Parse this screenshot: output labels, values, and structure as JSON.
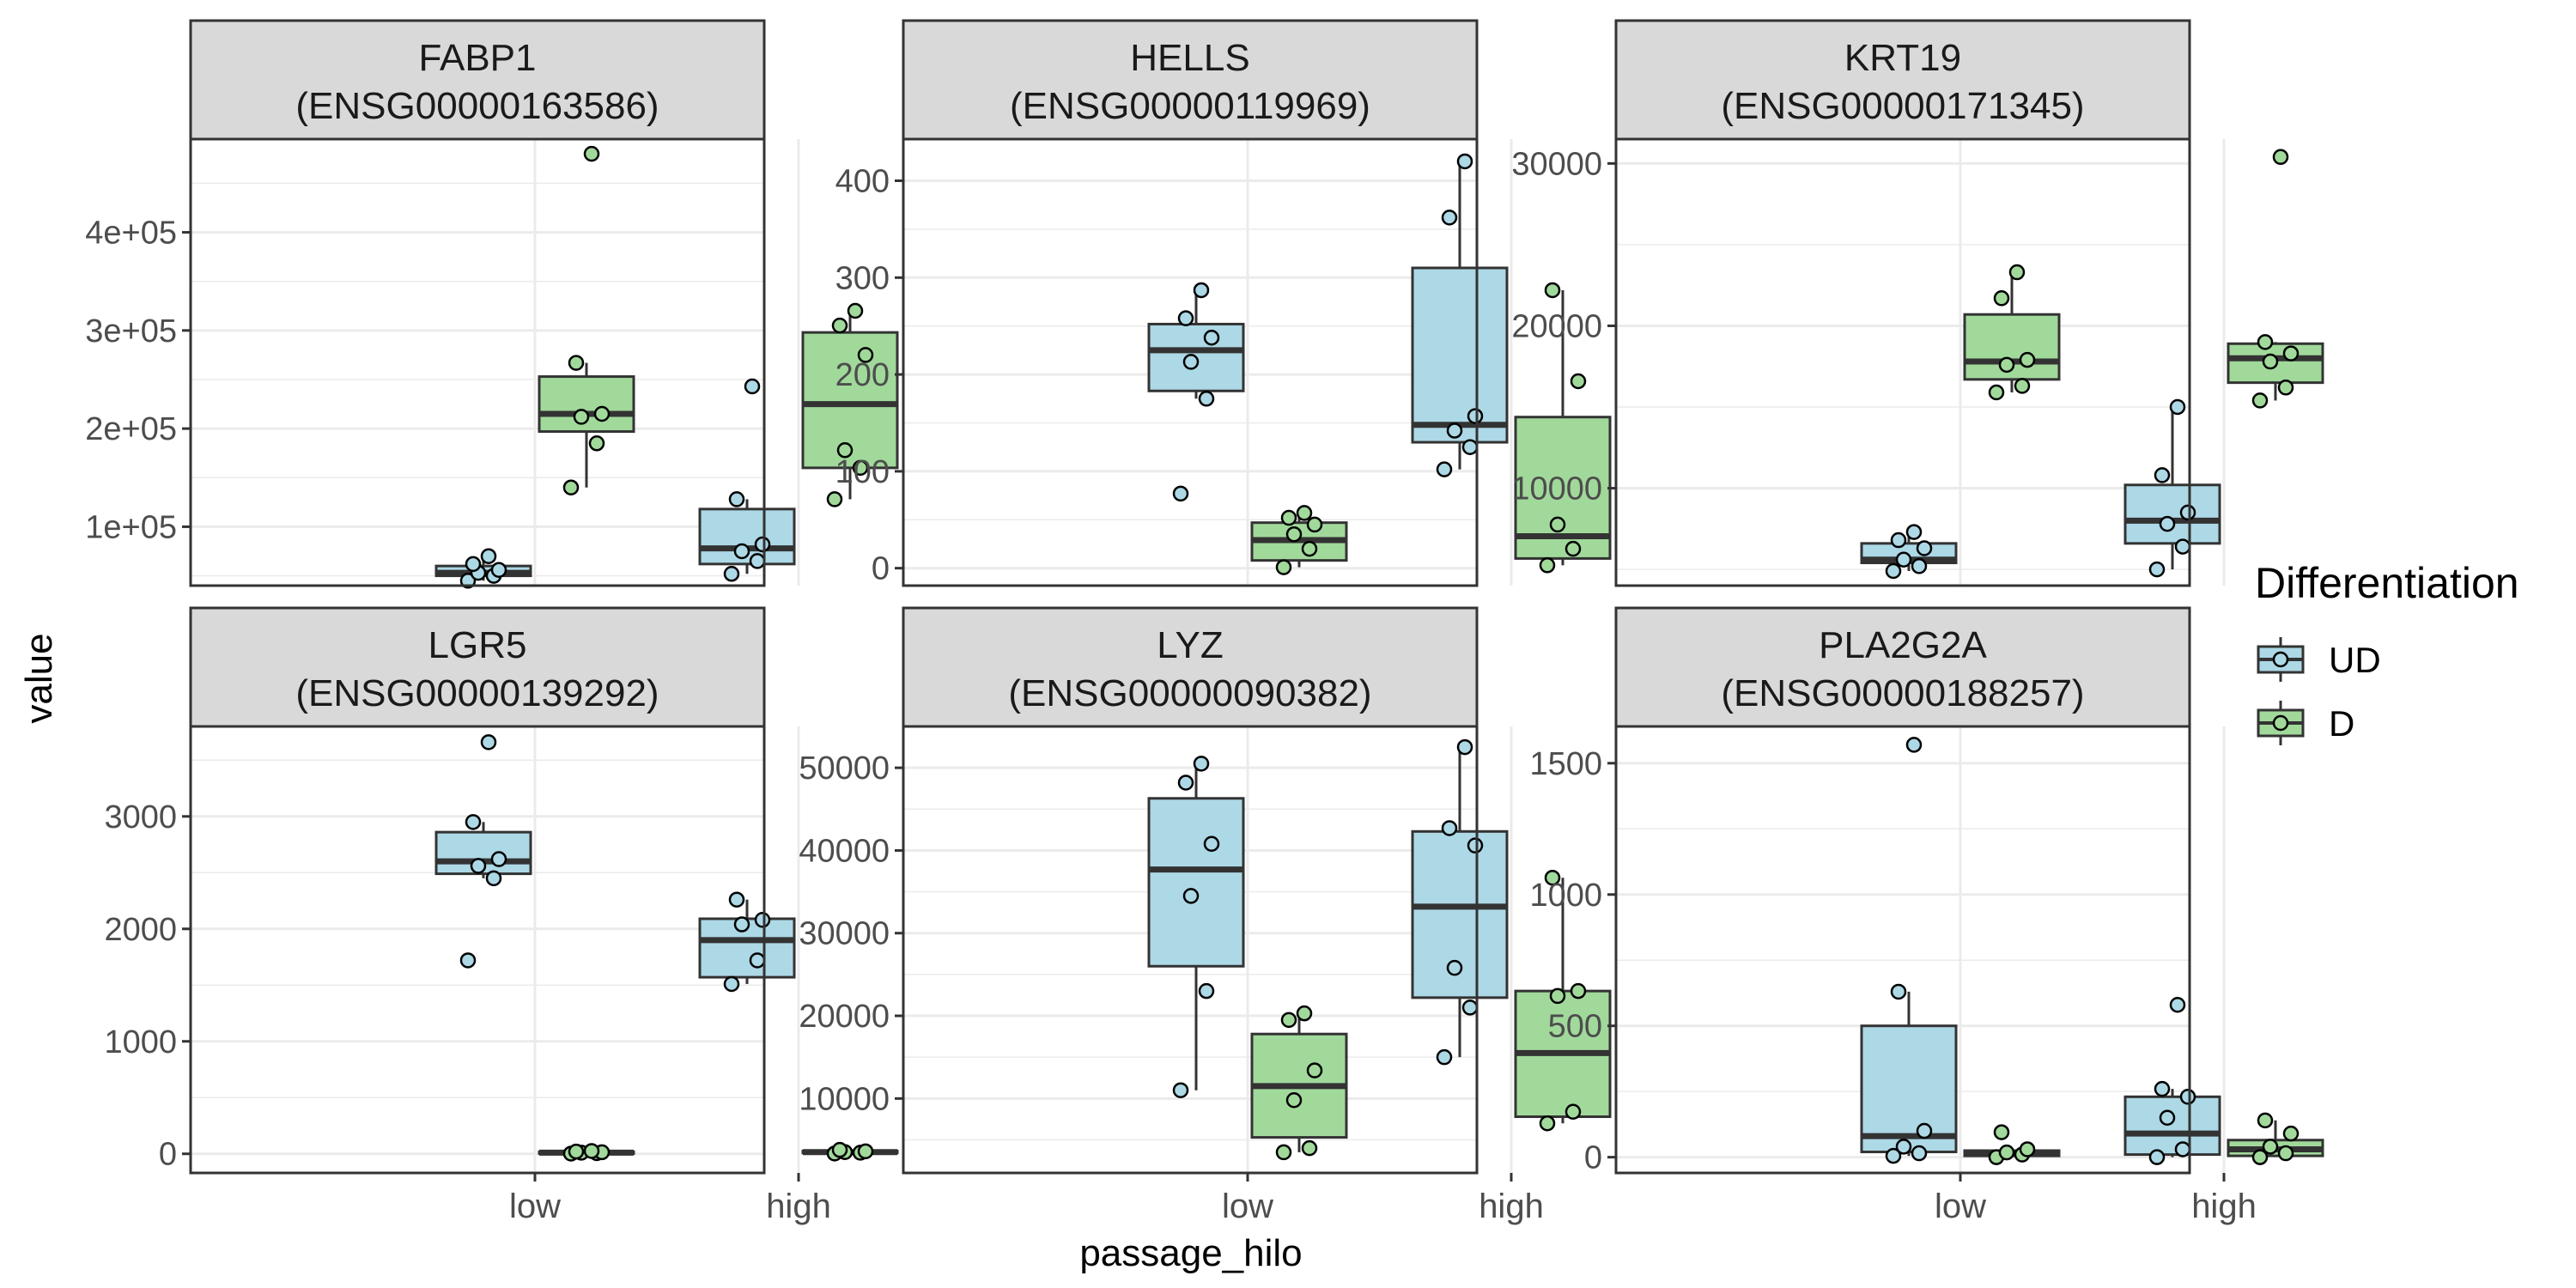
{
  "figure": {
    "ylabel": "value",
    "xlabel": "passage_hilo",
    "legend": {
      "title": "Differentiation",
      "placement": "right",
      "items": [
        {
          "label": "UD",
          "color": "#ADD8E6"
        },
        {
          "label": "D",
          "color": "#A1D99B"
        }
      ]
    },
    "colors": {
      "UD": "#ADD8E6",
      "D": "#A1D99B",
      "strip": "#D9D9D9",
      "grid": "#EBEBEB"
    }
  },
  "chart_data": [
    {
      "type": "box",
      "gene": "FABP1",
      "ensembl": "(ENSG00000163586)",
      "categories": [
        "low",
        "high"
      ],
      "ylim": [
        40000,
        495000
      ],
      "yticks": [
        100000,
        200000,
        300000,
        400000
      ],
      "ytick_labels": [
        "1e+05",
        "2e+05",
        "3e+05",
        "4e+05"
      ],
      "boxes": [
        {
          "passage": "low",
          "group": "UD",
          "q1": 50000,
          "median": 53000,
          "q3": 60000,
          "whisker_low": 45000,
          "whisker_high": 70000,
          "points": [
            45000,
            50000,
            53000,
            56000,
            62000,
            70000
          ]
        },
        {
          "passage": "low",
          "group": "D",
          "q1": 197000,
          "median": 215000,
          "q3": 253000,
          "whisker_low": 140000,
          "whisker_high": 267000,
          "points": [
            140000,
            185000,
            212000,
            215000,
            267000,
            480000
          ]
        },
        {
          "passage": "high",
          "group": "UD",
          "q1": 62000,
          "median": 78000,
          "q3": 118000,
          "whisker_low": 52000,
          "whisker_high": 128000,
          "points": [
            52000,
            65000,
            75000,
            82000,
            128000,
            243000
          ]
        },
        {
          "passage": "high",
          "group": "D",
          "q1": 160000,
          "median": 225000,
          "q3": 298000,
          "whisker_low": 128000,
          "whisker_high": 320000,
          "points": [
            128000,
            160000,
            178000,
            275000,
            305000,
            320000
          ]
        }
      ]
    },
    {
      "type": "box",
      "gene": "HELLS",
      "ensembl": "(ENSG00000119969)",
      "categories": [
        "low",
        "high"
      ],
      "ylim": [
        -18,
        443
      ],
      "yticks": [
        0,
        100,
        200,
        300,
        400
      ],
      "ytick_labels": [
        "0",
        "100",
        "200",
        "300",
        "400"
      ],
      "boxes": [
        {
          "passage": "low",
          "group": "UD",
          "q1": 183,
          "median": 225,
          "q3": 252,
          "whisker_low": 175,
          "whisker_high": 287,
          "points": [
            77,
            175,
            213,
            238,
            258,
            287
          ]
        },
        {
          "passage": "low",
          "group": "D",
          "q1": 8,
          "median": 29,
          "q3": 47,
          "whisker_low": 1,
          "whisker_high": 57,
          "points": [
            1,
            20,
            35,
            45,
            52,
            57
          ]
        },
        {
          "passage": "high",
          "group": "UD",
          "q1": 130,
          "median": 148,
          "q3": 310,
          "whisker_low": 102,
          "whisker_high": 420,
          "points": [
            102,
            125,
            142,
            157,
            362,
            420
          ]
        },
        {
          "passage": "high",
          "group": "D",
          "q1": 10,
          "median": 33,
          "q3": 156,
          "whisker_low": 3,
          "whisker_high": 287,
          "points": [
            3,
            20,
            45,
            193,
            287
          ]
        }
      ]
    },
    {
      "type": "box",
      "gene": "KRT19",
      "ensembl": "(ENSG00000171345)",
      "categories": [
        "low",
        "high"
      ],
      "ylim": [
        4000,
        31500
      ],
      "yticks": [
        10000,
        20000,
        30000
      ],
      "ytick_labels": [
        "10000",
        "20000",
        "30000"
      ],
      "boxes": [
        {
          "passage": "low",
          "group": "UD",
          "q1": 5400,
          "median": 5600,
          "q3": 6600,
          "whisker_low": 4900,
          "whisker_high": 7300,
          "points": [
            4900,
            5200,
            5600,
            6300,
            6800,
            7300
          ]
        },
        {
          "passage": "low",
          "group": "D",
          "q1": 16700,
          "median": 17800,
          "q3": 20700,
          "whisker_low": 15900,
          "whisker_high": 23300,
          "points": [
            15900,
            16300,
            17600,
            17900,
            21700,
            23300
          ]
        },
        {
          "passage": "high",
          "group": "UD",
          "q1": 6600,
          "median": 8000,
          "q3": 10200,
          "whisker_low": 5000,
          "whisker_high": 15000,
          "points": [
            5000,
            6400,
            7800,
            8500,
            10800,
            15000
          ]
        },
        {
          "passage": "high",
          "group": "D",
          "q1": 16500,
          "median": 18000,
          "q3": 18900,
          "whisker_low": 15400,
          "whisker_high": 19000,
          "points": [
            15400,
            16200,
            17800,
            18300,
            19000,
            30400
          ]
        }
      ]
    },
    {
      "type": "box",
      "gene": "LGR5",
      "ensembl": "(ENSG00000139292)",
      "categories": [
        "low",
        "high"
      ],
      "ylim": [
        -170,
        3800
      ],
      "yticks": [
        0,
        1000,
        2000,
        3000
      ],
      "ytick_labels": [
        "0",
        "1000",
        "2000",
        "3000"
      ],
      "boxes": [
        {
          "passage": "low",
          "group": "UD",
          "q1": 2490,
          "median": 2600,
          "q3": 2860,
          "whisker_low": 2450,
          "whisker_high": 2950,
          "points": [
            1720,
            2450,
            2560,
            2620,
            2950,
            3660
          ]
        },
        {
          "passage": "low",
          "group": "D",
          "q1": 5,
          "median": 10,
          "q3": 18,
          "whisker_low": 2,
          "whisker_high": 25,
          "points": [
            2,
            6,
            10,
            14,
            20,
            25
          ]
        },
        {
          "passage": "high",
          "group": "UD",
          "q1": 1570,
          "median": 1900,
          "q3": 2090,
          "whisker_low": 1510,
          "whisker_high": 2260,
          "points": [
            1510,
            1720,
            2040,
            2080,
            2260
          ]
        },
        {
          "passage": "high",
          "group": "D",
          "q1": 8,
          "median": 15,
          "q3": 25,
          "whisker_low": 3,
          "whisker_high": 35,
          "points": [
            3,
            10,
            15,
            22,
            35
          ]
        }
      ]
    },
    {
      "type": "box",
      "gene": "LYZ",
      "ensembl": "(ENSG00000090382)",
      "categories": [
        "low",
        "high"
      ],
      "ylim": [
        1000,
        55000
      ],
      "yticks": [
        10000,
        20000,
        30000,
        40000,
        50000
      ],
      "ytick_labels": [
        "10000",
        "20000",
        "30000",
        "40000",
        "50000"
      ],
      "boxes": [
        {
          "passage": "low",
          "group": "UD",
          "q1": 26000,
          "median": 37700,
          "q3": 46300,
          "whisker_low": 11000,
          "whisker_high": 50500,
          "points": [
            11000,
            23000,
            34500,
            40800,
            48200,
            50500
          ]
        },
        {
          "passage": "low",
          "group": "D",
          "q1": 5300,
          "median": 11500,
          "q3": 17800,
          "whisker_low": 3500,
          "whisker_high": 20300,
          "points": [
            3500,
            4000,
            9800,
            13400,
            19500,
            20300
          ]
        },
        {
          "passage": "high",
          "group": "UD",
          "q1": 22200,
          "median": 33200,
          "q3": 42300,
          "whisker_low": 15000,
          "whisker_high": 52500,
          "points": [
            15000,
            21000,
            25800,
            40600,
            42700,
            52500
          ]
        },
        {
          "passage": "high",
          "group": "D",
          "q1": 7800,
          "median": 15500,
          "q3": 23000,
          "whisker_low": 7000,
          "whisker_high": 36700,
          "points": [
            7000,
            8400,
            22400,
            23000,
            36700
          ]
        }
      ]
    },
    {
      "type": "box",
      "gene": "PLA2G2A",
      "ensembl": "(ENSG00000188257)",
      "categories": [
        "low",
        "high"
      ],
      "ylim": [
        -60,
        1640
      ],
      "yticks": [
        0,
        500,
        1000,
        1500
      ],
      "ytick_labels": [
        "0",
        "500",
        "1000",
        "1500"
      ],
      "boxes": [
        {
          "passage": "low",
          "group": "UD",
          "q1": 20,
          "median": 80,
          "q3": 500,
          "whisker_low": 5,
          "whisker_high": 630,
          "points": [
            5,
            15,
            40,
            100,
            630,
            1570
          ]
        },
        {
          "passage": "low",
          "group": "D",
          "q1": 5,
          "median": 15,
          "q3": 25,
          "whisker_low": 0,
          "whisker_high": 30,
          "points": [
            0,
            10,
            18,
            30,
            95
          ]
        },
        {
          "passage": "high",
          "group": "UD",
          "q1": 10,
          "median": 90,
          "q3": 230,
          "whisker_low": 0,
          "whisker_high": 260,
          "points": [
            0,
            30,
            150,
            230,
            260,
            580
          ]
        },
        {
          "passage": "high",
          "group": "D",
          "q1": 5,
          "median": 30,
          "q3": 65,
          "whisker_low": 0,
          "whisker_high": 140,
          "points": [
            0,
            15,
            40,
            90,
            140
          ]
        }
      ]
    }
  ]
}
